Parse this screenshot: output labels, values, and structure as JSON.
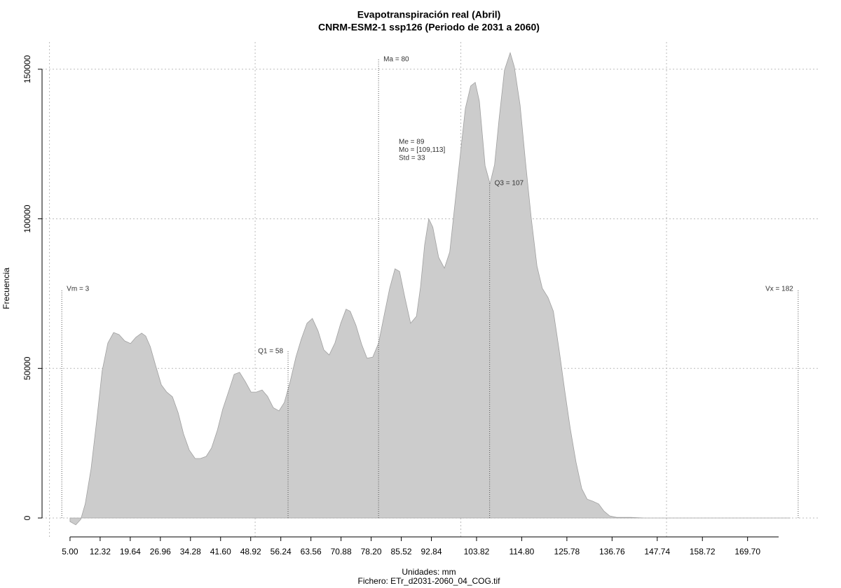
{
  "chart_data": {
    "type": "area",
    "title": "Evapotranspiración real (Abril)",
    "subtitle": "CNRM-ESM2-1 ssp126 (Periodo de 2031 a 2060)",
    "x_label": "Unidades: mm",
    "caption": "Fichero: ETr_d2031-2060_04_COG.tif",
    "y_label": "Frecuencia",
    "color": "#cccccc",
    "grid": true,
    "x": [
      5.0,
      6.4,
      7.6,
      8.7,
      10.1,
      11.5,
      12.8,
      14.2,
      15.6,
      16.9,
      18.3,
      19.7,
      21.0,
      22.4,
      23.4,
      24.5,
      25.8,
      27.2,
      28.5,
      29.9,
      31.3,
      32.6,
      34.0,
      35.4,
      36.7,
      38.1,
      39.4,
      40.8,
      42.1,
      43.5,
      44.9,
      46.2,
      47.6,
      49.0,
      50.3,
      51.7,
      53.0,
      54.4,
      55.8,
      57.1,
      58.5,
      59.9,
      61.2,
      62.6,
      63.9,
      65.3,
      66.7,
      68.0,
      69.4,
      70.8,
      72.1,
      73.1,
      74.5,
      75.9,
      77.2,
      78.6,
      80.0,
      81.3,
      82.7,
      84.0,
      85.1,
      86.4,
      87.8,
      89.2,
      90.2,
      91.2,
      92.2,
      93.2,
      94.6,
      96.0,
      97.3,
      98.4,
      99.7,
      101.1,
      102.4,
      103.5,
      104.5,
      105.9,
      107.1,
      108.2,
      109.3,
      110.6,
      112.0,
      113.0,
      114.4,
      115.7,
      117.1,
      118.5,
      119.8,
      121.2,
      122.5,
      123.9,
      125.3,
      126.6,
      128.0,
      129.4,
      130.7,
      132.1,
      133.5,
      134.8,
      136.2,
      137.9,
      141.3,
      144.7,
      158.3,
      180.1
    ],
    "values": [
      -1200,
      -2300,
      -500,
      4700,
      16400,
      32800,
      49100,
      58500,
      62000,
      61300,
      59200,
      58300,
      60400,
      61800,
      60800,
      57300,
      51000,
      44500,
      42100,
      40500,
      35100,
      28100,
      22700,
      19900,
      19900,
      20600,
      23400,
      29300,
      36300,
      42100,
      48000,
      48700,
      45600,
      42100,
      42100,
      42800,
      40700,
      36900,
      35800,
      38600,
      45600,
      53800,
      59700,
      65100,
      66700,
      62500,
      56200,
      54500,
      58500,
      65100,
      69800,
      69100,
      64400,
      58000,
      53400,
      53800,
      58500,
      67400,
      76800,
      83300,
      82400,
      73700,
      65100,
      67400,
      77200,
      91300,
      100000,
      97200,
      87100,
      83500,
      88900,
      103000,
      119300,
      136900,
      144400,
      145600,
      139300,
      117700,
      111800,
      118100,
      133300,
      149700,
      155500,
      150800,
      138000,
      119300,
      100500,
      84200,
      76800,
      73700,
      69100,
      56200,
      42100,
      29900,
      18700,
      9800,
      6300,
      5600,
      4700,
      2300,
      700,
      200,
      200,
      0,
      0,
      0
    ],
    "xlim": [
      -1.8,
      187.3
    ],
    "ylim": [
      -6550,
      159100
    ],
    "xticks": [
      {
        "value": 5,
        "label": "5.00"
      },
      12.32,
      19.64,
      26.96,
      34.28,
      {
        "value": 41.6,
        "label": "41.60"
      },
      48.92,
      56.24,
      63.56,
      70.88,
      {
        "value": 78.2,
        "label": "78.20"
      },
      85.52,
      92.84,
      103.82,
      {
        "value": 114.8,
        "label": "114.80"
      },
      125.78,
      136.76,
      147.74,
      158.72,
      {
        "value": 169.7,
        "label": "169.70"
      }
    ],
    "yticks": [
      0,
      50000,
      100000,
      150000
    ],
    "xgrid": [
      0,
      50,
      100,
      150
    ],
    "markers": [
      {
        "label": "Vm = 3",
        "x": 3,
        "y": 76500
      },
      {
        "label": "Q1 = 58",
        "x": 58,
        "y": 55700
      },
      {
        "label": "Ma = 80",
        "x": 80,
        "y": 153300
      },
      {
        "label": "Q3 = 107",
        "x": 107,
        "y": 111900
      },
      {
        "label": "Vx = 182",
        "x": 182,
        "y": 76500
      }
    ],
    "stats": [
      "Me = 89",
      "Mo = [109,113]",
      "Std = 33"
    ]
  }
}
